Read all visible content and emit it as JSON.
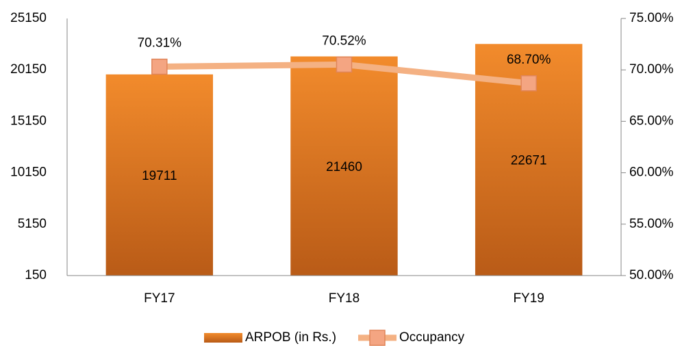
{
  "chart_data": {
    "type": "bar",
    "categories": [
      "FY17",
      "FY18",
      "FY19"
    ],
    "series": [
      {
        "name": "ARPOB (in Rs.)",
        "type": "bar",
        "color": "#ed7d31",
        "values": [
          19711,
          21460,
          22671
        ]
      },
      {
        "name": "Occupancy",
        "type": "line",
        "axis": "y2",
        "color": "#f4b183",
        "values": [
          70.31,
          70.52,
          68.7
        ],
        "value_labels": [
          "70.31%",
          "70.52%",
          "68.70%"
        ]
      }
    ],
    "ylim": [
      150,
      25150
    ],
    "yticks": [
      150,
      5150,
      10150,
      15150,
      20150,
      25150
    ],
    "y2lim": [
      50,
      75
    ],
    "y2ticks": [
      {
        "value": 50,
        "label": "50.00%"
      },
      {
        "value": 55,
        "label": "55.00%"
      },
      {
        "value": 60,
        "label": "60.00%"
      },
      {
        "value": 65,
        "label": "65.00%"
      },
      {
        "value": 70,
        "label": "70.00%"
      },
      {
        "value": 75,
        "label": "75.00%"
      }
    ],
    "grid": false,
    "legend": "bottom"
  }
}
